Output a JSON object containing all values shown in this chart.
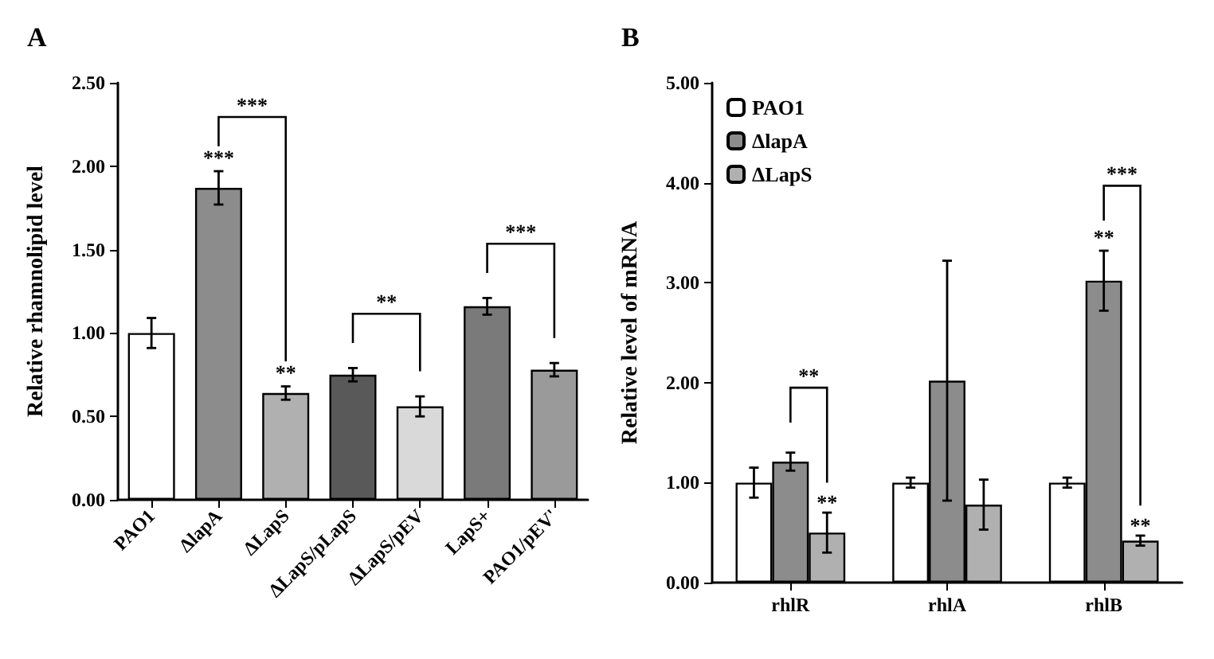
{
  "chart_data": [
    {
      "type": "bar",
      "title": "A",
      "ylabel": "Relative rhamnolipid level",
      "categories": [
        "PAO1",
        "ΔlapA",
        "ΔLapS",
        "ΔLapS/pLapS",
        "ΔLapS/pEV",
        "LapS+",
        "PAO1/pEV'"
      ],
      "values": [
        1.0,
        1.87,
        0.64,
        0.75,
        0.56,
        1.16,
        0.78
      ],
      "errors": [
        0.09,
        0.1,
        0.04,
        0.04,
        0.06,
        0.05,
        0.04
      ],
      "colors": [
        "#ffffff",
        "#8c8c8c",
        "#b0b0b0",
        "#595959",
        "#d9d9d9",
        "#7a7a7a",
        "#9a9a9a"
      ],
      "ylim": [
        0,
        2.5
      ],
      "yticks": [
        {
          "value": 0,
          "label": "0.00"
        },
        {
          "value": 0.5,
          "label": "0.50"
        },
        {
          "value": 1,
          "label": "1.00"
        },
        {
          "value": 1.5,
          "label": "1.50"
        },
        {
          "value": 2,
          "label": "2.00"
        },
        {
          "value": 2.5,
          "label": "2.50"
        }
      ],
      "annotations": [
        "***",
        {
          "text": "***",
          "x": "ΔlapA",
          "y": 1.97
        },
        {
          "text": "**",
          "x": "ΔLapS",
          "y": 0.68
        },
        "**",
        "***"
      ],
      "grid": false,
      "legend": false
    },
    {
      "type": "bar",
      "title": "B",
      "ylabel": "Relative level of mRNA",
      "categories": [
        "rhlR",
        "rhlA",
        "rhlB"
      ],
      "series": [
        {
          "name": "PAO1",
          "color": "#ffffff",
          "values": [
            1.0,
            1.0,
            1.0
          ],
          "errors": [
            0.15,
            0.05,
            0.05
          ]
        },
        {
          "name": "ΔlapA",
          "color": "#8c8c8c",
          "values": [
            1.21,
            2.02,
            3.02
          ],
          "errors": [
            0.09,
            1.2,
            0.3
          ]
        },
        {
          "name": "ΔLapS",
          "color": "#b0b0b0",
          "values": [
            0.5,
            0.78,
            0.42
          ],
          "errors": [
            0.2,
            0.25,
            0.05
          ]
        }
      ],
      "ylim": [
        0,
        5
      ],
      "yticks": [
        {
          "value": 0,
          "label": "0.00"
        },
        {
          "value": 1,
          "label": "1.00"
        },
        {
          "value": 2,
          "label": "2.00"
        },
        {
          "value": 3,
          "label": "3.00"
        },
        {
          "value": 4,
          "label": "4.00"
        },
        {
          "value": 5,
          "label": "5.00"
        }
      ],
      "annotations": [
        "**",
        "**",
        "***",
        {
          "text": "**",
          "x": "rhlB",
          "y": 3.32
        },
        "**"
      ],
      "grid": false,
      "legend": "top left"
    }
  ]
}
